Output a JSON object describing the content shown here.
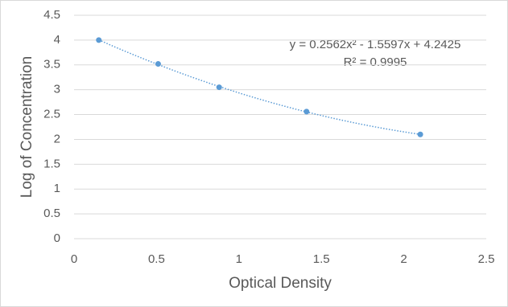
{
  "chart_data": {
    "type": "scatter",
    "x_label": "Optical Density",
    "y_label": "Log of Concentration",
    "series": [
      {
        "color": "#5b9bd5",
        "x": [
          0.15,
          0.51,
          0.88,
          1.41,
          2.1
        ],
        "values": [
          4.0,
          3.52,
          3.05,
          2.56,
          2.1
        ]
      }
    ],
    "trendline": {
      "order": 2,
      "style": "dotted",
      "equation": "y = 0.2562x² - 1.5597x + 4.2425",
      "r_squared": "R² = 0.9995"
    },
    "xlim": [
      0,
      2.5
    ],
    "xticks": [
      0,
      0.5,
      1,
      1.5,
      2,
      2.5
    ],
    "ylim": [
      0,
      4.5
    ],
    "yticks": [
      0,
      0.5,
      1,
      1.5,
      2,
      2.5,
      3,
      3.5,
      4,
      4.5
    ],
    "grid": true
  }
}
